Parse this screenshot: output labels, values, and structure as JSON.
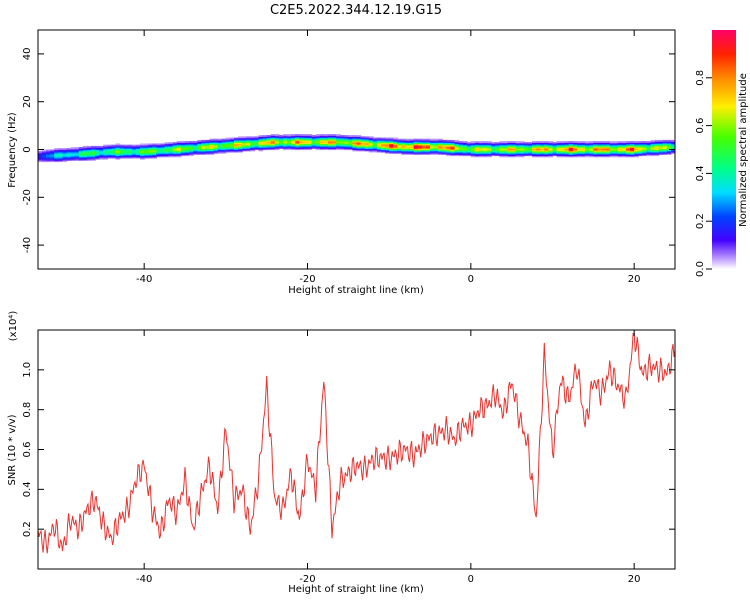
{
  "title": "C2E5.2022.344.12.19.G15",
  "colors": {
    "snr_line": "#e8322e",
    "frame": "#000000"
  },
  "chart_data": [
    {
      "type": "heatmap",
      "xlabel": "Height of straight line (km)",
      "ylabel": "Frequency (Hz)",
      "xlim": [
        -53,
        25
      ],
      "ylim": [
        -50,
        50
      ],
      "xticks": [
        -40,
        -20,
        0,
        20
      ],
      "yticks": [
        -40,
        -20,
        0,
        20,
        40
      ],
      "colorbar": {
        "label": "Normalized spectral amplitude",
        "range": [
          0.0,
          1.0
        ],
        "ticks": [
          "0.0",
          "0.2",
          "0.4",
          "0.6",
          "0.8"
        ]
      },
      "ridge": [
        {
          "x": -53,
          "f": -3,
          "amp": 0.25
        },
        {
          "x": -48,
          "f": -2,
          "amp": 0.5
        },
        {
          "x": -44,
          "f": -1,
          "amp": 0.55
        },
        {
          "x": -40,
          "f": -1,
          "amp": 0.6
        },
        {
          "x": -36,
          "f": 0,
          "amp": 0.65
        },
        {
          "x": -32,
          "f": 1,
          "amp": 0.7
        },
        {
          "x": -28,
          "f": 2,
          "amp": 0.75
        },
        {
          "x": -24,
          "f": 3,
          "amp": 0.8
        },
        {
          "x": -20,
          "f": 3,
          "amp": 0.82
        },
        {
          "x": -16,
          "f": 3,
          "amp": 0.8
        },
        {
          "x": -12,
          "f": 2,
          "amp": 0.85
        },
        {
          "x": -8,
          "f": 1,
          "amp": 0.98
        },
        {
          "x": -4,
          "f": 1,
          "amp": 0.95
        },
        {
          "x": 0,
          "f": 0,
          "amp": 0.7
        },
        {
          "x": 4,
          "f": 0,
          "amp": 0.75
        },
        {
          "x": 8,
          "f": 0,
          "amp": 0.8
        },
        {
          "x": 12,
          "f": 0,
          "amp": 0.9
        },
        {
          "x": 16,
          "f": 0,
          "amp": 0.85
        },
        {
          "x": 20,
          "f": 0,
          "amp": 0.9
        },
        {
          "x": 25,
          "f": 1,
          "amp": 0.6
        }
      ]
    },
    {
      "type": "line",
      "xlabel": "Height of straight line (km)",
      "ylabel": "SNR (10 * v/v)",
      "y_multiplier": "(x10⁴)",
      "xlim": [
        -53,
        25
      ],
      "ylim": [
        0.0,
        1.2
      ],
      "xticks": [
        -40,
        -20,
        0,
        20
      ],
      "yticks": [
        "0.2",
        "0.4",
        "0.6",
        "0.8",
        "1.0"
      ],
      "series": [
        {
          "x": [
            -53,
            -52,
            -51,
            -50,
            -49,
            -48,
            -47,
            -46,
            -45,
            -44,
            -43,
            -42,
            -41,
            -40,
            -39,
            -38,
            -37,
            -36,
            -35,
            -34,
            -33,
            -32,
            -31,
            -30,
            -29,
            -28,
            -27,
            -26,
            -25,
            -24,
            -23,
            -22,
            -21,
            -20,
            -19,
            -18,
            -17,
            -16,
            -15,
            -14,
            -13,
            -12,
            -11,
            -10,
            -9,
            -8,
            -7,
            -6,
            -5,
            -4,
            -3,
            -2,
            -1,
            0,
            1,
            2,
            3,
            4,
            5,
            6,
            7,
            8,
            9,
            10,
            11,
            12,
            13,
            14,
            15,
            16,
            17,
            18,
            19,
            20,
            21,
            22,
            23,
            24,
            25
          ],
          "y": [
            0.18,
            0.12,
            0.22,
            0.1,
            0.25,
            0.2,
            0.3,
            0.35,
            0.22,
            0.15,
            0.25,
            0.3,
            0.45,
            0.52,
            0.3,
            0.18,
            0.35,
            0.28,
            0.45,
            0.2,
            0.38,
            0.52,
            0.3,
            0.7,
            0.35,
            0.4,
            0.2,
            0.45,
            0.92,
            0.35,
            0.3,
            0.48,
            0.25,
            0.55,
            0.4,
            0.95,
            0.2,
            0.44,
            0.48,
            0.52,
            0.5,
            0.55,
            0.56,
            0.55,
            0.58,
            0.6,
            0.57,
            0.62,
            0.66,
            0.68,
            0.7,
            0.65,
            0.72,
            0.72,
            0.8,
            0.82,
            0.88,
            0.78,
            0.94,
            0.75,
            0.62,
            0.25,
            1.08,
            0.58,
            0.95,
            0.85,
            1.02,
            0.72,
            0.95,
            0.88,
            1.0,
            0.92,
            0.85,
            1.18,
            0.98,
            1.02,
            1.0,
            0.98,
            1.1
          ]
        }
      ]
    }
  ]
}
